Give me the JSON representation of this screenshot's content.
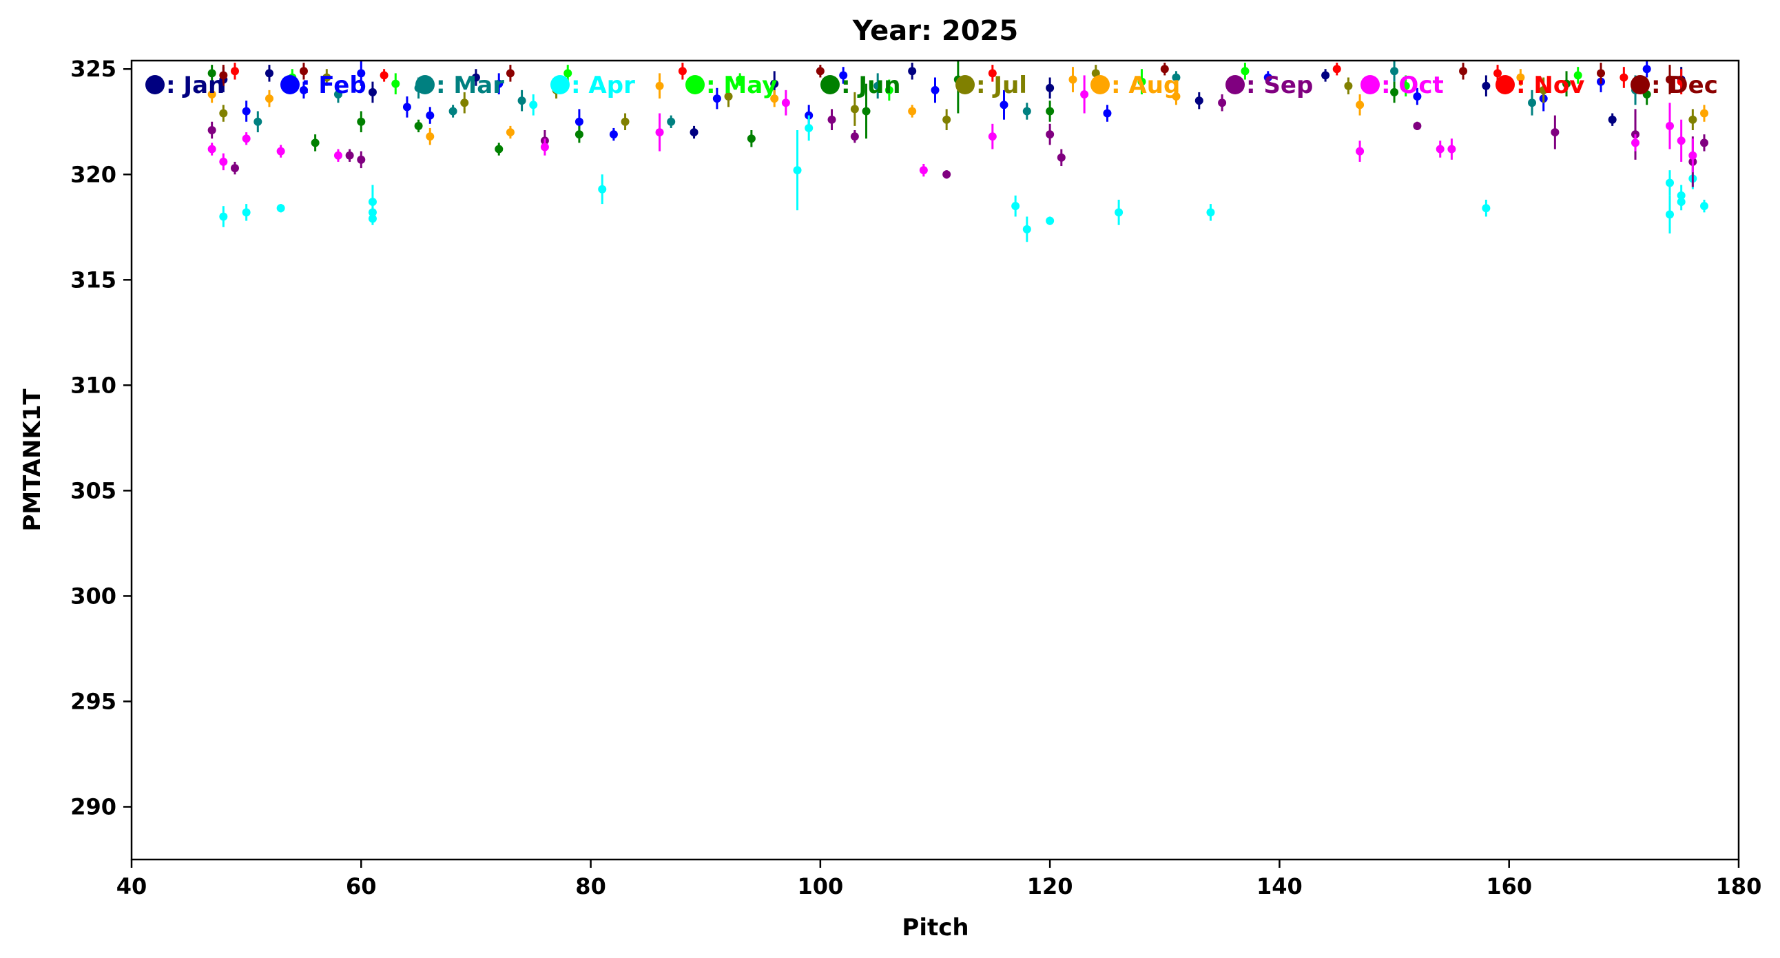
{
  "chart_data": {
    "type": "scatter",
    "title": "Year: 2025",
    "xlabel": "Pitch",
    "ylabel": "PMTANK1T",
    "xlim": [
      40,
      180
    ],
    "ylim": [
      287.5,
      325.4
    ],
    "xticks": [
      40,
      60,
      80,
      100,
      120,
      140,
      160,
      180
    ],
    "yticks": [
      290,
      295,
      300,
      305,
      310,
      315,
      320,
      325
    ],
    "grid": false,
    "legend_position": "top (single row inside axes)",
    "error_bars": true,
    "series": [
      {
        "name": "Jan",
        "label": ": Jan",
        "color": "#000080",
        "points": [
          [
            48,
            324.5,
            0.6
          ],
          [
            52,
            324.8,
            0.4
          ],
          [
            61,
            323.9,
            0.5
          ],
          [
            70,
            324.6,
            0.4
          ],
          [
            89,
            322.0,
            0.3
          ],
          [
            96,
            324.3,
            0.6
          ],
          [
            108,
            324.9,
            0.4
          ],
          [
            120,
            324.1,
            0.5
          ],
          [
            133,
            323.5,
            0.4
          ],
          [
            144,
            324.7,
            0.3
          ],
          [
            158,
            324.2,
            0.5
          ],
          [
            169,
            322.6,
            0.3
          ],
          [
            175,
            324.5,
            0.6
          ]
        ]
      },
      {
        "name": "Feb",
        "label": ": Feb",
        "color": "#0000ff",
        "points": [
          [
            50,
            323.0,
            0.5
          ],
          [
            55,
            324.0,
            0.4
          ],
          [
            60,
            324.8,
            0.6
          ],
          [
            64,
            323.2,
            0.5
          ],
          [
            66,
            322.8,
            0.4
          ],
          [
            72,
            324.3,
            0.5
          ],
          [
            79,
            322.5,
            0.6
          ],
          [
            82,
            321.9,
            0.3
          ],
          [
            91,
            323.6,
            0.5
          ],
          [
            99,
            322.8,
            0.5
          ],
          [
            102,
            324.7,
            0.4
          ],
          [
            110,
            324.0,
            0.6
          ],
          [
            116,
            323.3,
            0.7
          ],
          [
            125,
            322.9,
            0.4
          ],
          [
            139,
            324.6,
            0.3
          ],
          [
            152,
            323.7,
            0.4
          ],
          [
            163,
            323.6,
            0.6
          ],
          [
            168,
            324.4,
            0.5
          ],
          [
            172,
            325.0,
            0.4
          ]
        ]
      },
      {
        "name": "Mar",
        "label": ": Mar",
        "color": "#008080",
        "points": [
          [
            51,
            322.5,
            0.5
          ],
          [
            58,
            323.8,
            0.4
          ],
          [
            65,
            324.1,
            0.5
          ],
          [
            68,
            323.0,
            0.3
          ],
          [
            74,
            323.5,
            0.5
          ],
          [
            87,
            322.5,
            0.3
          ],
          [
            105,
            324.2,
            0.6
          ],
          [
            118,
            323.0,
            0.4
          ],
          [
            131,
            324.6,
            0.3
          ],
          [
            150,
            324.9,
            0.5
          ],
          [
            162,
            323.4,
            0.6
          ],
          [
            171,
            324.0,
            0.7
          ]
        ]
      },
      {
        "name": "Apr",
        "label": ": Apr",
        "color": "#00ffff",
        "points": [
          [
            48,
            318.0,
            0.5
          ],
          [
            50,
            318.2,
            0.4
          ],
          [
            53,
            318.4,
            0.2
          ],
          [
            61,
            318.7,
            0.8
          ],
          [
            61,
            318.2,
            0.4
          ],
          [
            61,
            317.9,
            0.3
          ],
          [
            75,
            323.3,
            0.5
          ],
          [
            81,
            319.3,
            0.7
          ],
          [
            98,
            320.2,
            1.9
          ],
          [
            99,
            322.2,
            0.6
          ],
          [
            118,
            317.4,
            0.6
          ],
          [
            117,
            318.5,
            0.5
          ],
          [
            120,
            317.8,
            0.2
          ],
          [
            126,
            318.2,
            0.6
          ],
          [
            134,
            318.2,
            0.4
          ],
          [
            158,
            318.4,
            0.4
          ],
          [
            174,
            319.6,
            0.6
          ],
          [
            174,
            318.1,
            0.9
          ],
          [
            175,
            319.0,
            0.5
          ],
          [
            175,
            318.7,
            0.4
          ],
          [
            176,
            319.8,
            0.5
          ],
          [
            177,
            318.5,
            0.3
          ]
        ]
      },
      {
        "name": "May",
        "label": ": May",
        "color": "#00ff00",
        "points": [
          [
            54,
            324.6,
            0.4
          ],
          [
            63,
            324.3,
            0.5
          ],
          [
            78,
            324.8,
            0.4
          ],
          [
            93,
            324.5,
            0.3
          ],
          [
            106,
            324.0,
            0.5
          ],
          [
            128,
            324.4,
            0.6
          ],
          [
            137,
            324.9,
            0.4
          ],
          [
            151,
            324.2,
            0.5
          ],
          [
            166,
            324.7,
            0.4
          ]
        ]
      },
      {
        "name": "Jun",
        "label": ": Jun",
        "color": "#008000",
        "points": [
          [
            47,
            324.8,
            0.4
          ],
          [
            56,
            321.5,
            0.4
          ],
          [
            60,
            322.5,
            0.5
          ],
          [
            65,
            322.3,
            0.3
          ],
          [
            72,
            321.2,
            0.3
          ],
          [
            79,
            321.9,
            0.4
          ],
          [
            94,
            321.7,
            0.4
          ],
          [
            104,
            323.0,
            1.3
          ],
          [
            112,
            324.5,
            1.6
          ],
          [
            120,
            323.0,
            0.5
          ],
          [
            150,
            323.9,
            0.5
          ],
          [
            165,
            324.3,
            0.6
          ],
          [
            172,
            323.8,
            0.5
          ]
        ]
      },
      {
        "name": "Jul",
        "label": ": Jul",
        "color": "#808000",
        "points": [
          [
            48,
            322.9,
            0.4
          ],
          [
            57,
            324.6,
            0.4
          ],
          [
            69,
            323.4,
            0.5
          ],
          [
            77,
            324.0,
            0.4
          ],
          [
            83,
            322.5,
            0.4
          ],
          [
            92,
            323.7,
            0.5
          ],
          [
            103,
            323.1,
            0.8
          ],
          [
            111,
            322.6,
            0.5
          ],
          [
            124,
            324.8,
            0.4
          ],
          [
            146,
            324.2,
            0.4
          ],
          [
            163,
            324.0,
            0.6
          ],
          [
            176,
            322.6,
            0.5
          ]
        ]
      },
      {
        "name": "Aug",
        "label": ": Aug",
        "color": "#ffa500",
        "points": [
          [
            47,
            323.8,
            0.4
          ],
          [
            52,
            323.6,
            0.4
          ],
          [
            66,
            321.8,
            0.4
          ],
          [
            73,
            322.0,
            0.3
          ],
          [
            86,
            324.2,
            0.6
          ],
          [
            96,
            323.6,
            0.4
          ],
          [
            108,
            323.0,
            0.3
          ],
          [
            122,
            324.5,
            0.6
          ],
          [
            131,
            323.7,
            0.4
          ],
          [
            147,
            323.3,
            0.5
          ],
          [
            161,
            324.6,
            0.4
          ],
          [
            177,
            322.9,
            0.4
          ]
        ]
      },
      {
        "name": "Sep",
        "label": ": Sep",
        "color": "#800080",
        "points": [
          [
            47,
            322.1,
            0.4
          ],
          [
            49,
            320.3,
            0.3
          ],
          [
            59,
            320.9,
            0.3
          ],
          [
            60,
            320.7,
            0.4
          ],
          [
            76,
            321.6,
            0.5
          ],
          [
            101,
            322.6,
            0.5
          ],
          [
            103,
            321.8,
            0.3
          ],
          [
            111,
            320.0,
            0.2
          ],
          [
            120,
            321.9,
            0.5
          ],
          [
            121,
            320.8,
            0.4
          ],
          [
            135,
            323.4,
            0.4
          ],
          [
            152,
            322.3,
            0.2
          ],
          [
            164,
            322.0,
            0.8
          ],
          [
            171,
            321.9,
            1.2
          ],
          [
            176,
            320.6,
            1.2
          ],
          [
            177,
            321.5,
            0.4
          ]
        ]
      },
      {
        "name": "Oct",
        "label": ": Oct",
        "color": "#ff00ff",
        "points": [
          [
            47,
            321.2,
            0.3
          ],
          [
            48,
            320.6,
            0.4
          ],
          [
            50,
            321.7,
            0.3
          ],
          [
            53,
            321.1,
            0.3
          ],
          [
            58,
            320.9,
            0.3
          ],
          [
            76,
            321.3,
            0.4
          ],
          [
            86,
            322.0,
            0.9
          ],
          [
            97,
            323.4,
            0.6
          ],
          [
            109,
            320.2,
            0.3
          ],
          [
            115,
            321.8,
            0.6
          ],
          [
            123,
            323.8,
            0.9
          ],
          [
            147,
            321.1,
            0.5
          ],
          [
            154,
            321.2,
            0.4
          ],
          [
            155,
            321.2,
            0.5
          ],
          [
            171,
            321.5,
            0.4
          ],
          [
            174,
            322.3,
            1.1
          ],
          [
            175,
            321.6,
            1.0
          ],
          [
            176,
            320.9,
            0.8
          ]
        ]
      },
      {
        "name": "Nov",
        "label": ": Nov",
        "color": "#ff0000",
        "points": [
          [
            49,
            324.9,
            0.4
          ],
          [
            62,
            324.7,
            0.3
          ],
          [
            88,
            324.9,
            0.4
          ],
          [
            115,
            324.8,
            0.4
          ],
          [
            145,
            325.0,
            0.3
          ],
          [
            159,
            324.8,
            0.4
          ],
          [
            170,
            324.6,
            0.5
          ],
          [
            175,
            324.4,
            0.6
          ]
        ]
      },
      {
        "name": "Dec",
        "label": ": Dec",
        "color": "#8b0000",
        "points": [
          [
            48,
            324.7,
            0.5
          ],
          [
            55,
            324.9,
            0.4
          ],
          [
            73,
            324.8,
            0.4
          ],
          [
            100,
            324.9,
            0.3
          ],
          [
            130,
            325.0,
            0.3
          ],
          [
            156,
            324.9,
            0.4
          ],
          [
            168,
            324.8,
            0.5
          ],
          [
            174,
            324.5,
            0.7
          ]
        ]
      }
    ]
  }
}
